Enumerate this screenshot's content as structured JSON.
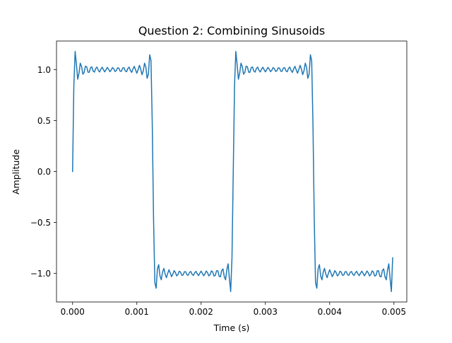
{
  "chart_data": {
    "type": "line",
    "title": "Question 2: Combining Sinusoids",
    "xlabel": "Time (s)",
    "ylabel": "Amplitude",
    "xlim": [
      -0.00025,
      0.0052
    ],
    "ylim": [
      -1.28,
      1.28
    ],
    "xticks": [
      0.0,
      0.001,
      0.002,
      0.003,
      0.004,
      0.005
    ],
    "xtick_labels": [
      "0.000",
      "0.001",
      "0.002",
      "0.003",
      "0.004",
      "0.005"
    ],
    "yticks": [
      -1.0,
      -0.5,
      0.0,
      0.5,
      1.0
    ],
    "ytick_labels": [
      "−1.0",
      "−0.5",
      "0.0",
      "0.5",
      "1.0"
    ],
    "grid": false,
    "series": [
      {
        "color": "#1f77b4",
        "signal": {
          "fundamental_hz": 400,
          "odd_harmonics": 15,
          "amplitude": 1.0,
          "t_start": 0.0,
          "t_end": 0.00498,
          "t_step": 2e-05
        }
      }
    ]
  }
}
